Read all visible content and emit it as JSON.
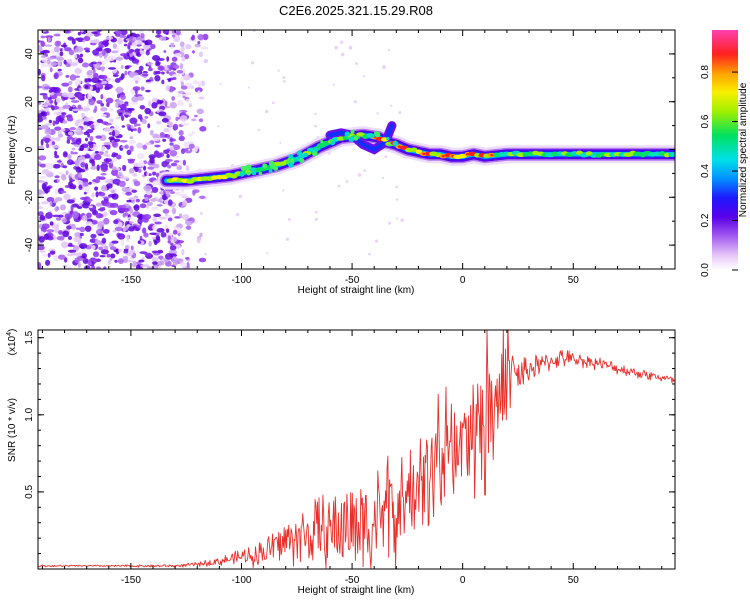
{
  "title": "C2E6.2025.321.15.29.R08",
  "chart_data": [
    {
      "type": "heatmap",
      "xlabel": "Height of straight line (km)",
      "ylabel": "Frequency (Hz)",
      "xlim": [
        -192,
        96
      ],
      "ylim": [
        -50,
        50
      ],
      "xticks": [
        -150,
        -100,
        -50,
        0,
        50
      ],
      "xtick_labels": [
        "-150",
        "-100",
        "-50",
        "0",
        "50"
      ],
      "yticks": [
        -40,
        -20,
        0,
        20,
        40
      ],
      "ytick_labels": [
        "-40",
        "-20",
        "0",
        "20",
        "40"
      ],
      "colorbar": {
        "label": "Normalized spectral amplitude",
        "range": [
          0,
          0.97
        ],
        "ticks": [
          0,
          0.2,
          0.4,
          0.6,
          0.8
        ],
        "tick_labels": [
          "0.0",
          "0.2",
          "0.4",
          "0.6",
          "0.8"
        ],
        "colormap": "rainbow (white-violet-purple-blue-cyan-green-yellow-orange-red-magenta)"
      },
      "noise_region_x": [
        -192,
        -124
      ],
      "ridge_frequency_track": {
        "x": [
          -134,
          -125,
          -115,
          -105,
          -95,
          -85,
          -75,
          -65,
          -55,
          -45,
          -38,
          -34,
          -30,
          -25,
          -20,
          -15,
          -10,
          -5,
          0,
          5,
          10,
          20,
          30,
          40,
          50,
          60,
          70,
          80,
          96
        ],
        "frequency": [
          -13,
          -13,
          -12,
          -11,
          -9,
          -7,
          -4,
          1,
          5,
          6,
          5,
          3,
          2,
          0,
          -1,
          -2,
          -2,
          -3,
          -3,
          -2,
          -3,
          -2,
          -2,
          -2,
          -2,
          -2,
          -2,
          -2,
          -2
        ]
      },
      "side_ridge": {
        "x": [
          -60,
          -55,
          -50,
          -45,
          -40,
          -35,
          -32
        ],
        "frequency": [
          6,
          7,
          6,
          2,
          0,
          3,
          10
        ]
      }
    },
    {
      "type": "line",
      "xlabel": "Height of straight line (km)",
      "ylabel": "SNR (10 * v/v)",
      "y_scale_label": "(x10",
      "y_scale_exponent": "4",
      "y_scale_close": ")",
      "xlim": [
        -192,
        96
      ],
      "ylim": [
        0,
        1.55
      ],
      "xticks": [
        -150,
        -100,
        -50,
        0,
        50
      ],
      "xtick_labels": [
        "-150",
        "-100",
        "-50",
        "0",
        "50"
      ],
      "yticks": [
        0.5,
        1.0,
        1.5
      ],
      "ytick_labels": [
        "0.5",
        "1.0",
        "1.5"
      ],
      "series": [
        {
          "name": "SNR",
          "color": "#e8302a",
          "x": [
            -192,
            -160,
            -130,
            -120,
            -110,
            -100,
            -95,
            -90,
            -85,
            -80,
            -75,
            -70,
            -65,
            -60,
            -55,
            -50,
            -45,
            -40,
            -35,
            -30,
            -25,
            -20,
            -15,
            -10,
            -5,
            0,
            5,
            10,
            15,
            20,
            25,
            30,
            35,
            40,
            45,
            50,
            60,
            70,
            80,
            90,
            96
          ],
          "mean": [
            0.02,
            0.02,
            0.02,
            0.03,
            0.05,
            0.08,
            0.09,
            0.11,
            0.15,
            0.18,
            0.2,
            0.22,
            0.24,
            0.25,
            0.27,
            0.29,
            0.3,
            0.31,
            0.33,
            0.37,
            0.45,
            0.52,
            0.62,
            0.7,
            0.76,
            0.82,
            0.9,
            1.0,
            1.07,
            1.15,
            1.25,
            1.3,
            1.32,
            1.35,
            1.37,
            1.36,
            1.34,
            1.3,
            1.27,
            1.24,
            1.22
          ],
          "noise_amp": [
            0.005,
            0.005,
            0.008,
            0.012,
            0.025,
            0.04,
            0.06,
            0.08,
            0.1,
            0.13,
            0.15,
            0.18,
            0.2,
            0.22,
            0.24,
            0.26,
            0.28,
            0.3,
            0.32,
            0.3,
            0.28,
            0.26,
            0.3,
            0.35,
            0.35,
            0.3,
            0.3,
            0.35,
            0.3,
            0.22,
            0.12,
            0.08,
            0.06,
            0.05,
            0.05,
            0.04,
            0.035,
            0.03,
            0.03,
            0.025,
            0.025
          ]
        }
      ]
    }
  ]
}
